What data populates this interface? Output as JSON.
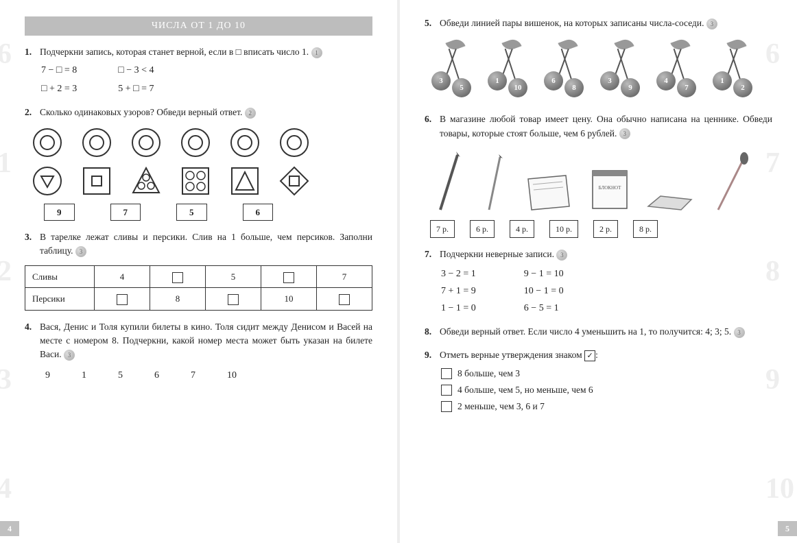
{
  "colors": {
    "header_bg": "#bdbdbd",
    "text": "#222222",
    "border": "#333333",
    "bg_faint": "#eeeeee"
  },
  "typography": {
    "body_size_pt": 10,
    "header_size_pt": 11
  },
  "left_page": {
    "page_num": "4",
    "header": "ЧИСЛА ОТ 1 ДО 10",
    "t1": {
      "num": "1.",
      "text": "Подчеркни запись, которая станет верной, если в □ вписать число 1.",
      "apple": "1",
      "equations_row1": [
        "7 − □ = 8",
        "□ − 3 < 4"
      ],
      "equations_row2": [
        "□ + 2 = 3",
        "5 + □ = 7"
      ]
    },
    "t2": {
      "num": "2.",
      "text": "Сколько одинаковых узоров? Обведи верный ответ.",
      "apple": "2",
      "patterns_row1": [
        "ring",
        "ring",
        "ring",
        "ring",
        "ring",
        "ring"
      ],
      "patterns_row2": [
        "tri-down",
        "square-in-square",
        "tri-circles",
        "four-circles",
        "tri-in-square",
        "diamond-square"
      ],
      "answers": [
        "9",
        "7",
        "5",
        "6"
      ]
    },
    "t3": {
      "num": "3.",
      "text": "В тарелке лежат сливы и персики. Слив на 1 больше, чем персиков. Заполни таблицу.",
      "apple": "3",
      "row1_label": "Сливы",
      "row2_label": "Персики",
      "row1": [
        "4",
        "□",
        "5",
        "□",
        "7"
      ],
      "row2": [
        "□",
        "8",
        "□",
        "10",
        "□"
      ]
    },
    "t4": {
      "num": "4.",
      "text": "Вася, Денис и Толя купили билеты в кино. Толя сидит между Денисом и Васей на месте с номером 8. Подчеркни, какой номер места может быть указан на билете Васи.",
      "apple": "3",
      "seats": [
        "9",
        "1",
        "5",
        "6",
        "7",
        "10"
      ]
    }
  },
  "right_page": {
    "page_num": "5",
    "t5": {
      "num": "5.",
      "text": "Обведи линией пары вишенок, на которых записаны числа-соседи.",
      "apple": "3",
      "pairs": [
        [
          "3",
          "5"
        ],
        [
          "1",
          "10"
        ],
        [
          "6",
          "8"
        ],
        [
          "3",
          "9"
        ],
        [
          "4",
          "7"
        ],
        [
          "1",
          "2"
        ]
      ]
    },
    "t6": {
      "num": "6.",
      "text": "В магазине любой товар имеет цену. Она обычно написана на ценнике. Обведи товары, которые стоят больше, чем 6 рублей.",
      "apple": "3",
      "item_labels": [
        "",
        "",
        "",
        "БЛОКНОТ",
        "",
        ""
      ],
      "prices": [
        "7 р.",
        "6 р.",
        "4 р.",
        "10 р.",
        "2 р.",
        "8 р."
      ]
    },
    "t7": {
      "num": "7.",
      "text": "Подчеркни неверные записи.",
      "apple": "3",
      "col1": [
        "3 − 2 = 1",
        "7 + 1 = 9",
        "1 − 1 = 0"
      ],
      "col2": [
        "9 − 1 = 10",
        "10 − 1 = 0",
        "6 − 5 = 1"
      ]
    },
    "t8": {
      "num": "8.",
      "text": "Обведи верный ответ. Если число 4 уменьшить на 1, то получится: 4; 3; 5.",
      "apple": "3"
    },
    "t9": {
      "num": "9.",
      "pretext": "Отметь верные утверждения знаком",
      "checkmark": "✓",
      "items": [
        "8 больше, чем 3",
        "4 больше, чем 5, но меньше, чем 6",
        "2 меньше, чем 3, 6 и 7"
      ]
    }
  }
}
